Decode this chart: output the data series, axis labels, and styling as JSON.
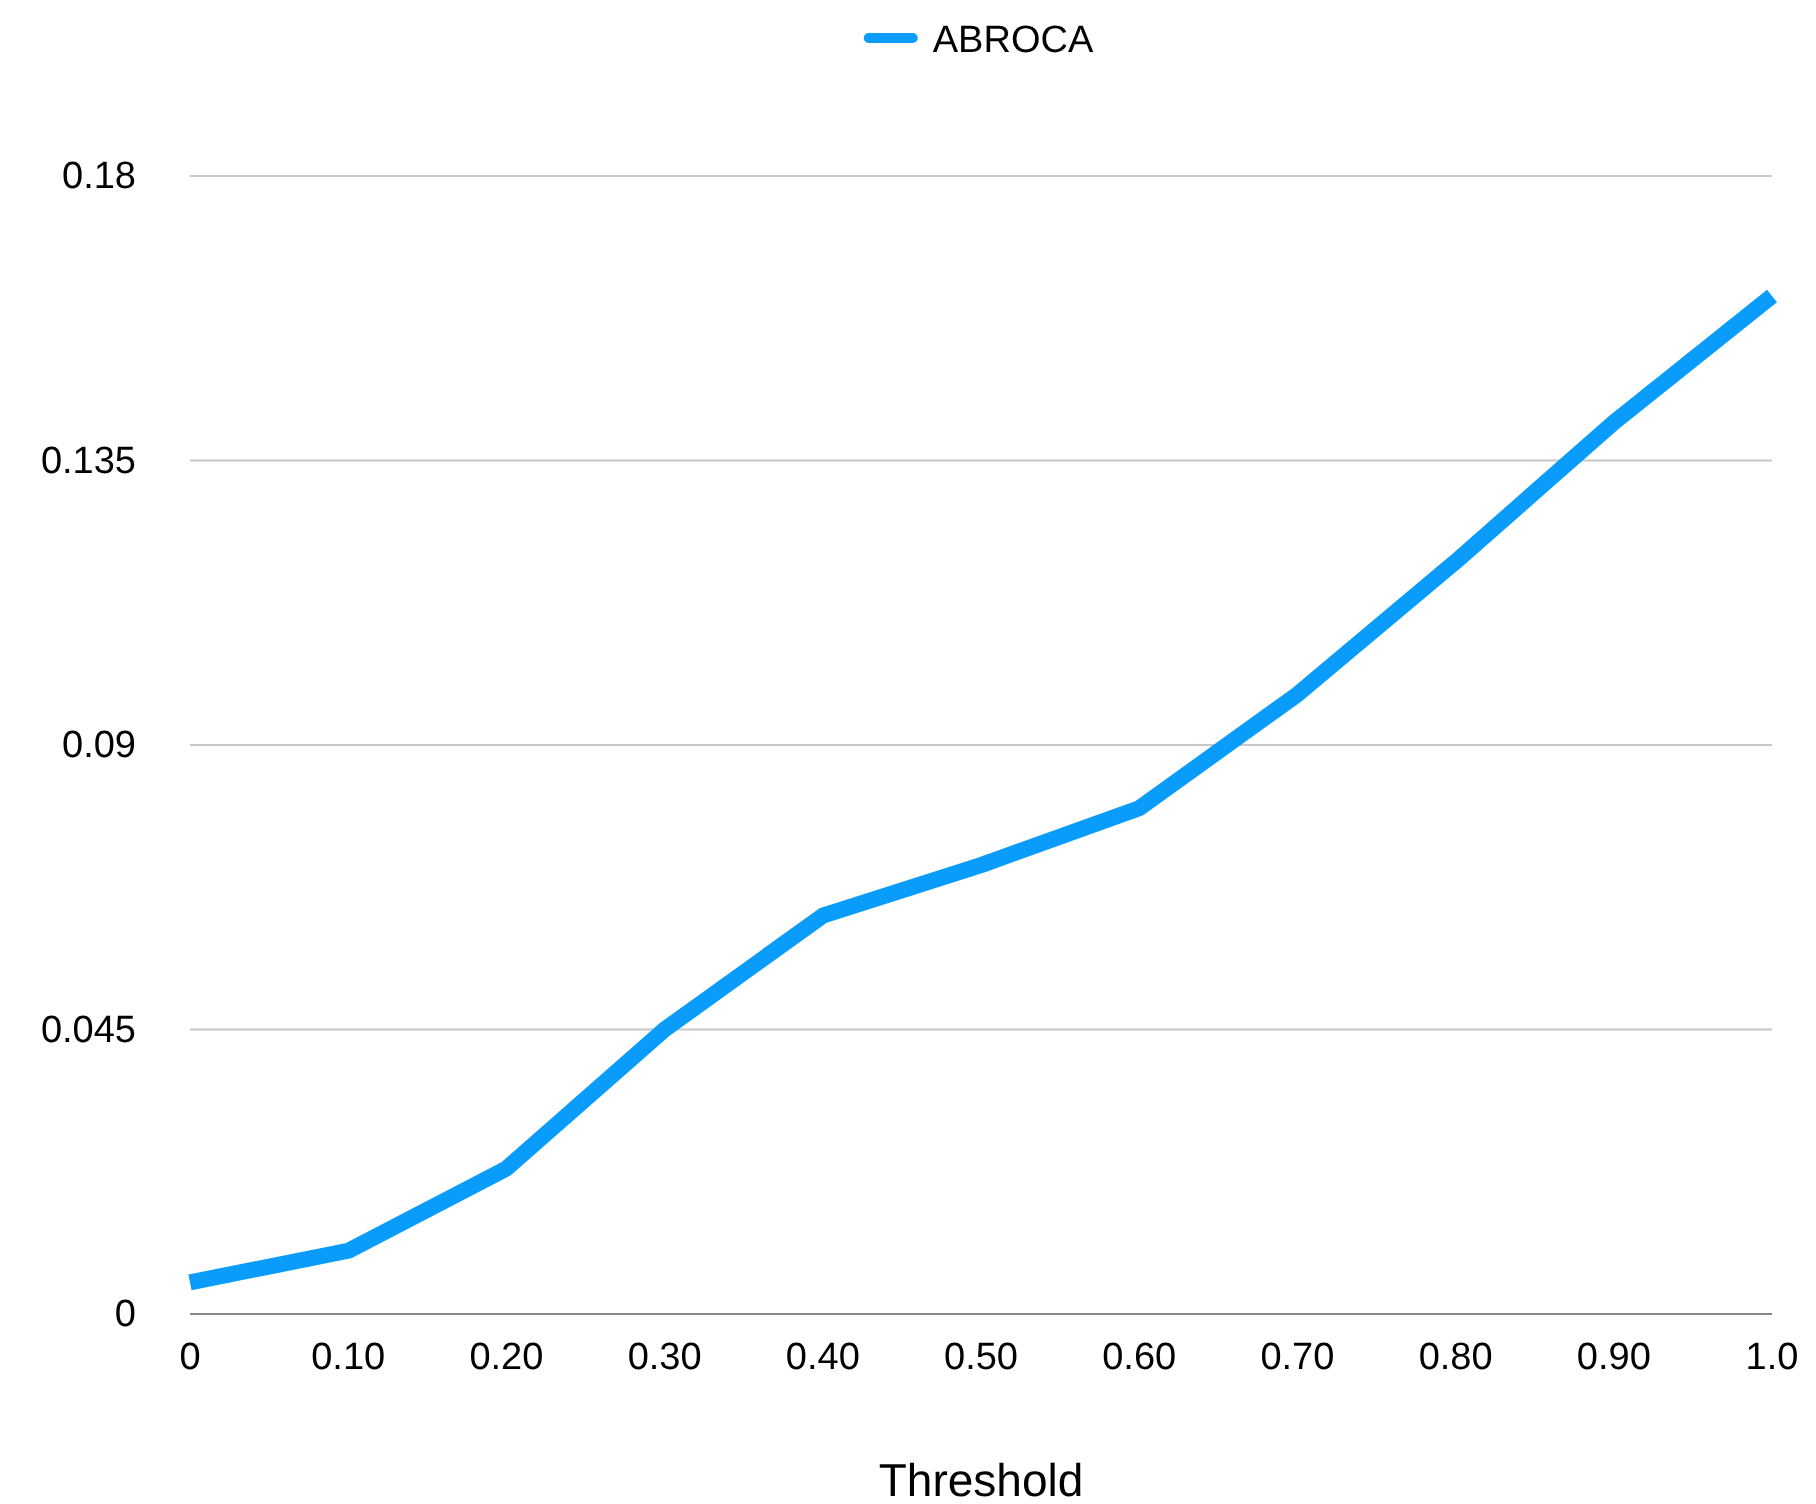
{
  "chart_data": {
    "type": "line",
    "xlabel": "Threshold",
    "categories": [
      "0",
      "0.10",
      "0.20",
      "0.30",
      "0.40",
      "0.50",
      "0.60",
      "0.70",
      "0.80",
      "0.90",
      "1.0"
    ],
    "series": [
      {
        "name": "ABROCA",
        "color": "#0a9cfa",
        "values": [
          0.005,
          0.01,
          0.023,
          0.045,
          0.063,
          0.071,
          0.08,
          0.098,
          0.119,
          0.141,
          0.161
        ]
      }
    ],
    "ylim": [
      0,
      0.18
    ],
    "yticks": [
      0,
      0.045,
      0.09,
      0.135,
      0.18
    ],
    "grid": "y",
    "legend": "top",
    "marker": "none",
    "line_style": "solid"
  }
}
